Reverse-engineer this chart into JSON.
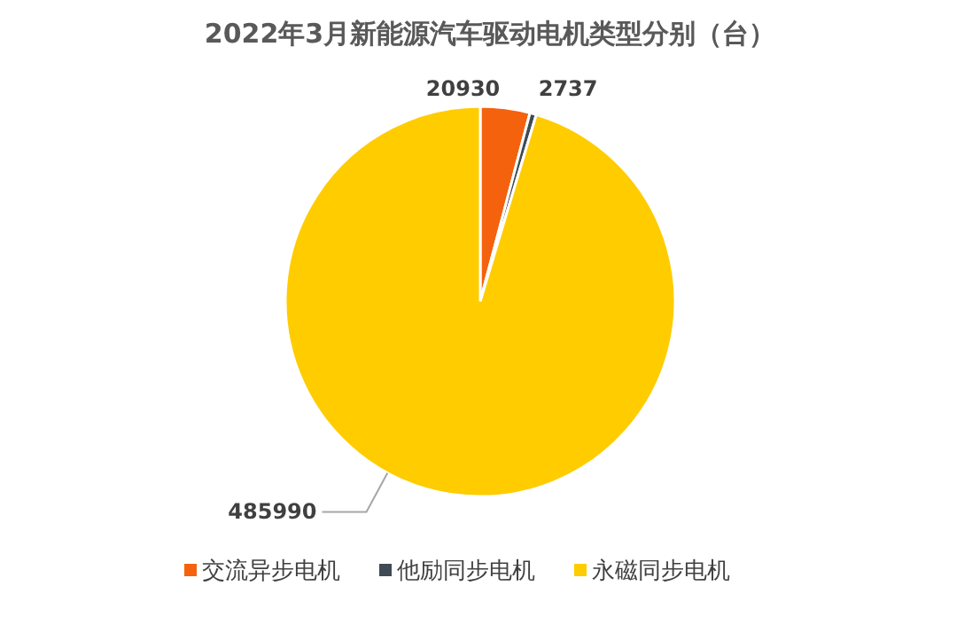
{
  "chart_data": {
    "type": "pie",
    "title": "2022年3月新能源汽车驱动电机类型分别（台）",
    "categories": [
      "交流异步电机",
      "他励同步电机",
      "永磁同步电机"
    ],
    "values": [
      20930,
      2737,
      485990
    ],
    "colors": [
      "#f4620e",
      "#404a55",
      "#ffcc00"
    ],
    "data_labels": true,
    "legend": "bottom"
  }
}
